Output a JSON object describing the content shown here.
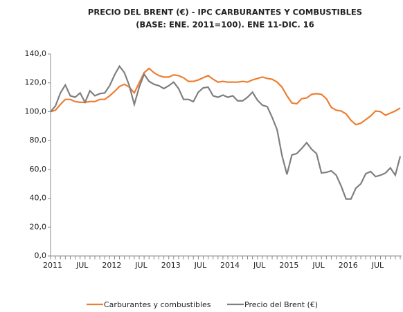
{
  "chart_data": {
    "type": "line",
    "title": "PRECIO DEL BRENT (€) - IPC CARBURANTES Y COMBUSTIBLES",
    "subtitle": "(BASE: ENE. 2011=100).  ENE 11-DIC. 16",
    "categories": [
      "2011",
      null,
      null,
      null,
      null,
      null,
      "JUL",
      null,
      null,
      null,
      null,
      null,
      "2012",
      null,
      null,
      null,
      null,
      null,
      "JUL",
      null,
      null,
      null,
      null,
      null,
      "2013",
      null,
      null,
      null,
      null,
      null,
      "JUL",
      null,
      null,
      null,
      null,
      null,
      "2014",
      null,
      null,
      null,
      null,
      null,
      "JUL",
      null,
      null,
      null,
      null,
      null,
      "2015",
      null,
      null,
      null,
      null,
      null,
      "JUL",
      null,
      null,
      null,
      null,
      null,
      "2016",
      null,
      null,
      null,
      null,
      null,
      "JUL",
      null,
      null,
      null,
      null,
      null
    ],
    "series": [
      {
        "name": "Carburantes y combustibles",
        "color": "#ed7d31",
        "values": [
          100,
          101,
          105,
          108.5,
          108.5,
          107,
          106.5,
          106.5,
          107,
          107,
          108.5,
          108.5,
          111,
          114,
          117.5,
          119,
          117,
          113,
          120,
          127,
          130,
          127,
          125,
          124,
          124,
          125.5,
          125,
          123.5,
          121,
          121,
          122,
          123.5,
          125,
          122.5,
          120.5,
          121,
          120.5,
          120.5,
          120.5,
          121,
          120.5,
          122,
          123,
          124,
          123,
          122.5,
          120.5,
          117,
          111,
          106,
          105.5,
          109,
          109.5,
          112,
          112.5,
          112,
          109,
          103,
          101,
          100.5,
          98.5,
          94,
          91,
          92,
          94.5,
          97,
          100.5,
          100,
          97.5,
          99,
          100.5,
          102.5
        ]
      },
      {
        "name": "Precio del Brent (€)",
        "color": "#7f7f7f",
        "values": [
          100,
          104,
          113,
          118.5,
          111,
          110,
          113,
          106.5,
          114.5,
          111,
          112.5,
          113,
          118,
          125.5,
          131.5,
          127,
          118,
          105,
          117,
          126,
          121,
          119,
          118,
          116,
          118,
          120.5,
          116,
          108.5,
          108.5,
          107,
          113.5,
          116.5,
          117,
          111,
          110,
          111.5,
          110,
          111,
          107.5,
          107.5,
          110,
          113.5,
          108,
          104.5,
          103.5,
          96,
          87.5,
          69.5,
          56.5,
          70,
          71,
          74.5,
          78.5,
          74,
          71,
          57.5,
          58,
          59,
          56,
          48.5,
          39.5,
          39.5,
          47,
          50,
          57,
          58.5,
          55,
          56,
          57.5,
          61,
          56,
          69
        ]
      }
    ],
    "ylim": [
      0,
      140
    ],
    "yticks": [
      {
        "value": 0,
        "label": "0,0"
      },
      {
        "value": 20,
        "label": "20,0"
      },
      {
        "value": 40,
        "label": "40,0"
      },
      {
        "value": 60,
        "label": "60,0"
      },
      {
        "value": 80,
        "label": "80,0"
      },
      {
        "value": 100,
        "label": "100,0"
      },
      {
        "value": 120,
        "label": "120,0"
      },
      {
        "value": 140,
        "label": "140,0"
      }
    ],
    "grid": false,
    "legend": "bottom"
  }
}
